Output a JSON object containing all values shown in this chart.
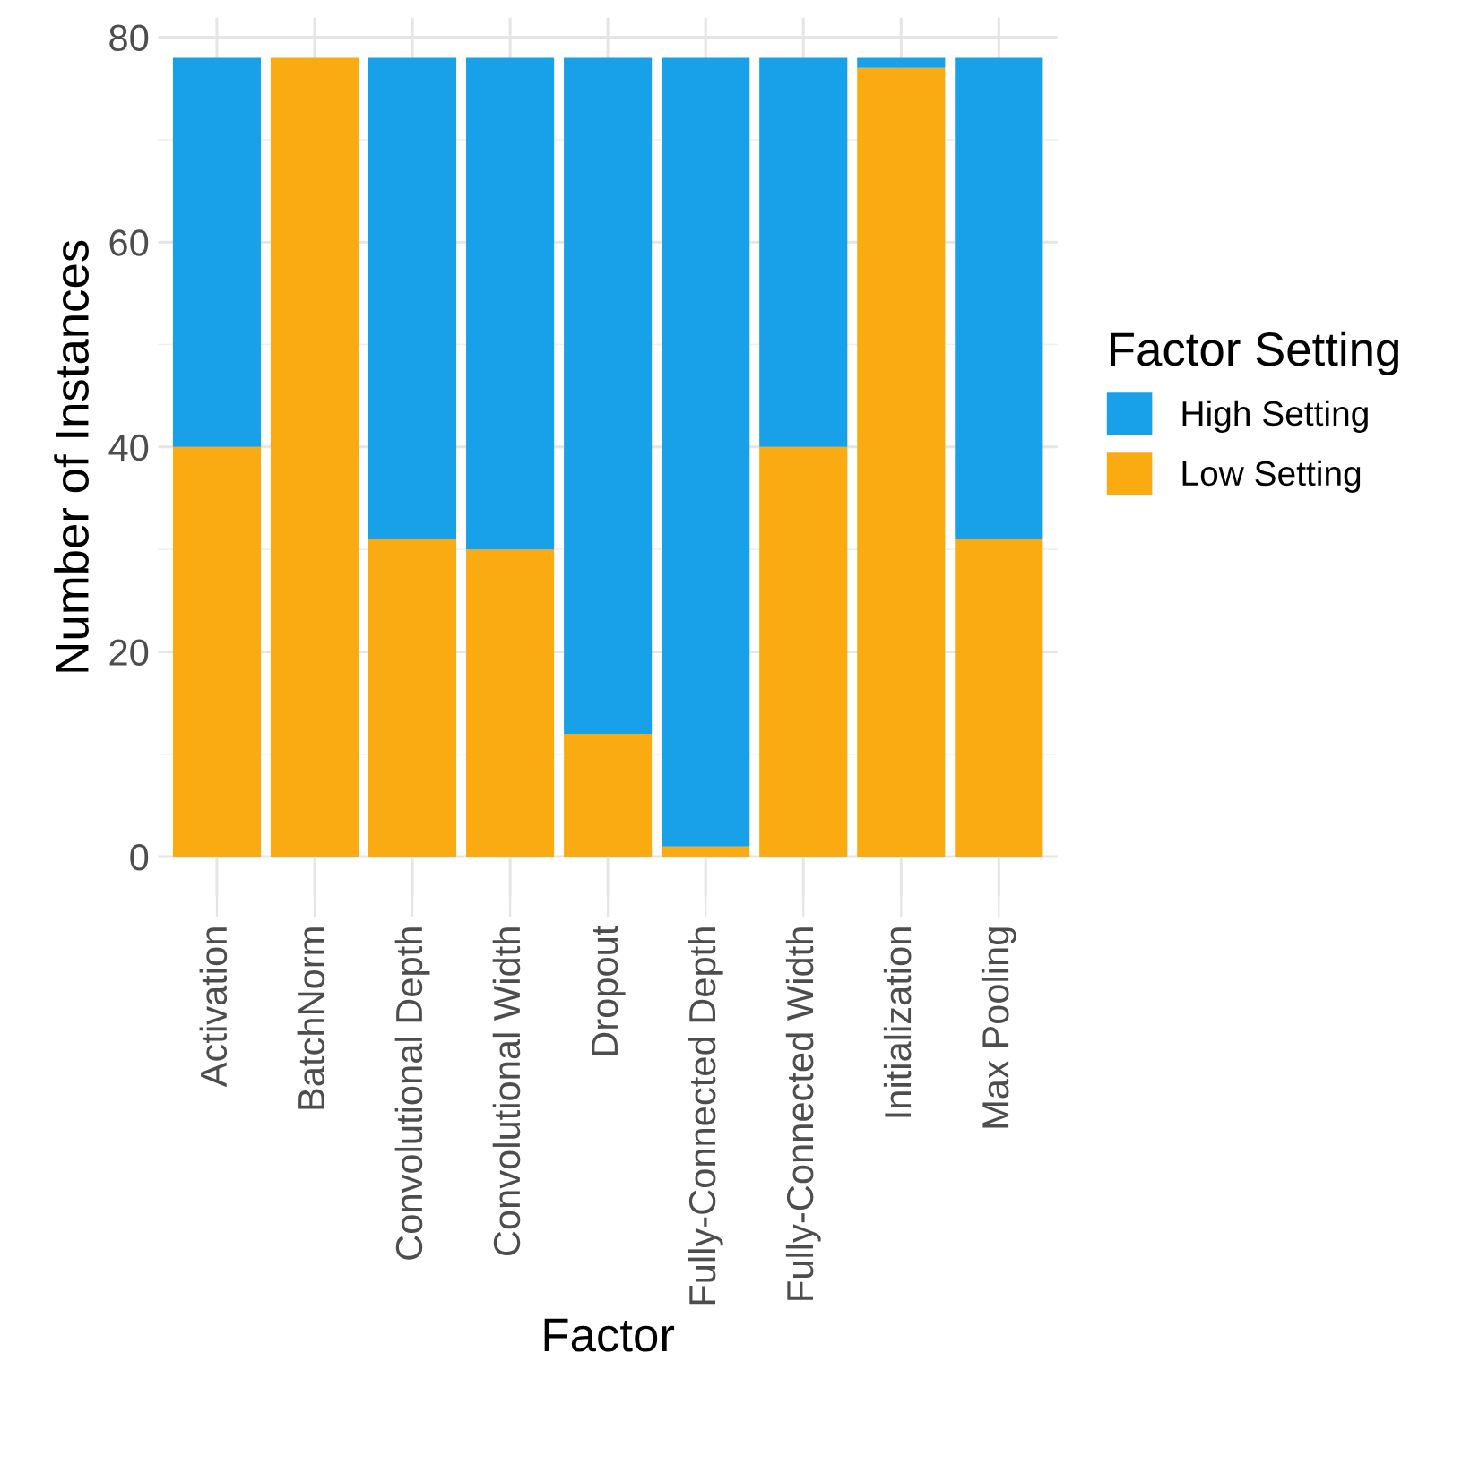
{
  "chart_data": {
    "type": "bar",
    "stacked": true,
    "xlabel": "Factor",
    "ylabel": "Number of Instances",
    "legend_title": "Factor Setting",
    "categories": [
      "Activation",
      "BatchNorm",
      "Convolutional Depth",
      "Convolutional Width",
      "Dropout",
      "Fully-Connected Depth",
      "Fully-Connected Width",
      "Initialization",
      "Max Pooling"
    ],
    "series": [
      {
        "name": "Low Setting",
        "color": "#fbab12",
        "values": [
          40,
          78,
          31,
          30,
          12,
          1,
          40,
          77,
          31
        ]
      },
      {
        "name": "High Setting",
        "color": "#18a1e8",
        "values": [
          38,
          0,
          47,
          48,
          66,
          77,
          38,
          1,
          47
        ]
      }
    ],
    "ylim": [
      -3.9,
      81.9
    ],
    "yticks": [
      0,
      20,
      40,
      60,
      80
    ],
    "grid": true,
    "legend": "right"
  }
}
